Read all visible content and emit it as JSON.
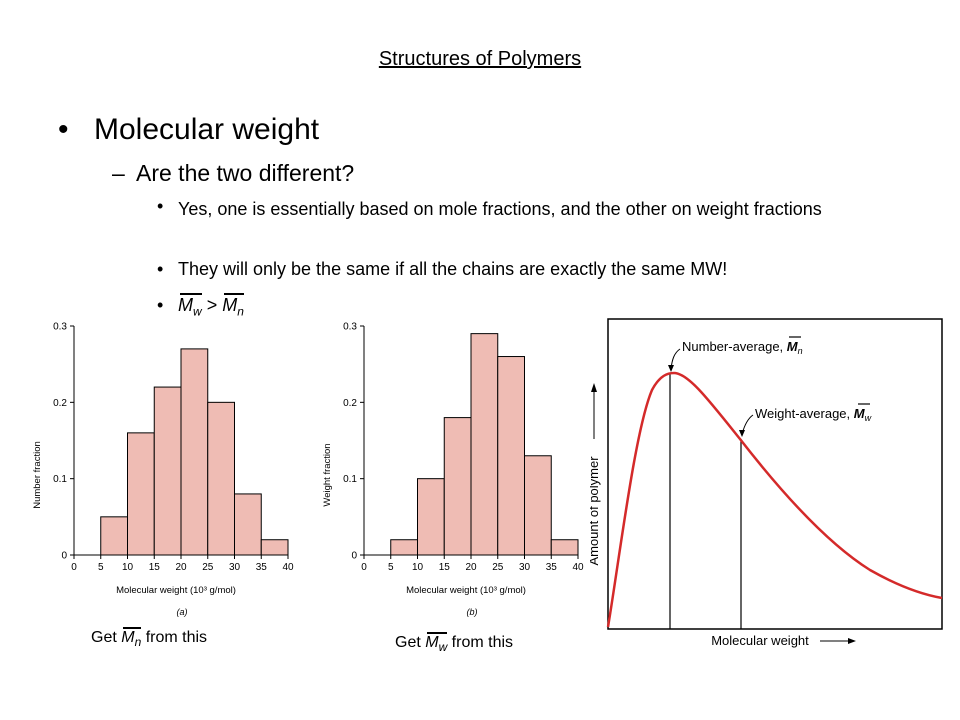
{
  "slide": {
    "title": "Structures of Polymers",
    "bullet1": "Molecular weight",
    "bullet2": "Are the two different?",
    "bullet3": "Yes, one is essentially based on mole fractions, and the other on weight fractions",
    "bullet4": "They will only be the same if all the chains are exactly the same MW!",
    "bullet5": {
      "left_symbol": "M",
      "left_sub": "w",
      "operator": ">",
      "right_symbol": "M",
      "right_sub": "n"
    },
    "dot": "•",
    "dash": "–"
  },
  "captions": {
    "a": {
      "prefix": "Get ",
      "symbol": "M",
      "sub": "n",
      "suffix": " from this"
    },
    "b": {
      "prefix": "Get ",
      "symbol": "M",
      "sub": "w",
      "suffix": " from this"
    }
  },
  "chart_data": [
    {
      "type": "bar",
      "panel_label": "(a)",
      "ylabel": "Number fraction",
      "xlabel": "Molecular weight (10³ g/mol)",
      "bin_edges": [
        5,
        10,
        15,
        20,
        25,
        30,
        35,
        40
      ],
      "values": [
        0.05,
        0.16,
        0.22,
        0.27,
        0.2,
        0.08,
        0.02
      ],
      "xlim": [
        0,
        40
      ],
      "ylim": [
        0,
        0.3
      ],
      "xticks": [
        "0",
        "5",
        "10",
        "15",
        "20",
        "25",
        "30",
        "35",
        "40"
      ],
      "yticks": [
        "0",
        "0.1",
        "0.2",
        "0.3"
      ],
      "bar_color": "#efbcb4"
    },
    {
      "type": "bar",
      "panel_label": "(b)",
      "ylabel": "Weight fraction",
      "xlabel": "Molecular weight (10³ g/mol)",
      "bin_edges": [
        5,
        10,
        15,
        20,
        25,
        30,
        35,
        40
      ],
      "values": [
        0.02,
        0.1,
        0.18,
        0.29,
        0.26,
        0.13,
        0.02
      ],
      "xlim": [
        0,
        40
      ],
      "ylim": [
        0,
        0.3
      ],
      "xticks": [
        "0",
        "5",
        "10",
        "15",
        "20",
        "25",
        "30",
        "35",
        "40"
      ],
      "yticks": [
        "0",
        "0.1",
        "0.2",
        "0.3"
      ],
      "bar_color": "#efbcb4"
    },
    {
      "type": "line",
      "xlabel": "Molecular weight",
      "ylabel": "Amount of polymer",
      "annotations": [
        {
          "label": "Number-average, ",
          "symbol": "M",
          "sub": "n"
        },
        {
          "label": "Weight-average, ",
          "symbol": "M",
          "sub": "w"
        }
      ],
      "curve_color": "#d42a2a"
    }
  ]
}
